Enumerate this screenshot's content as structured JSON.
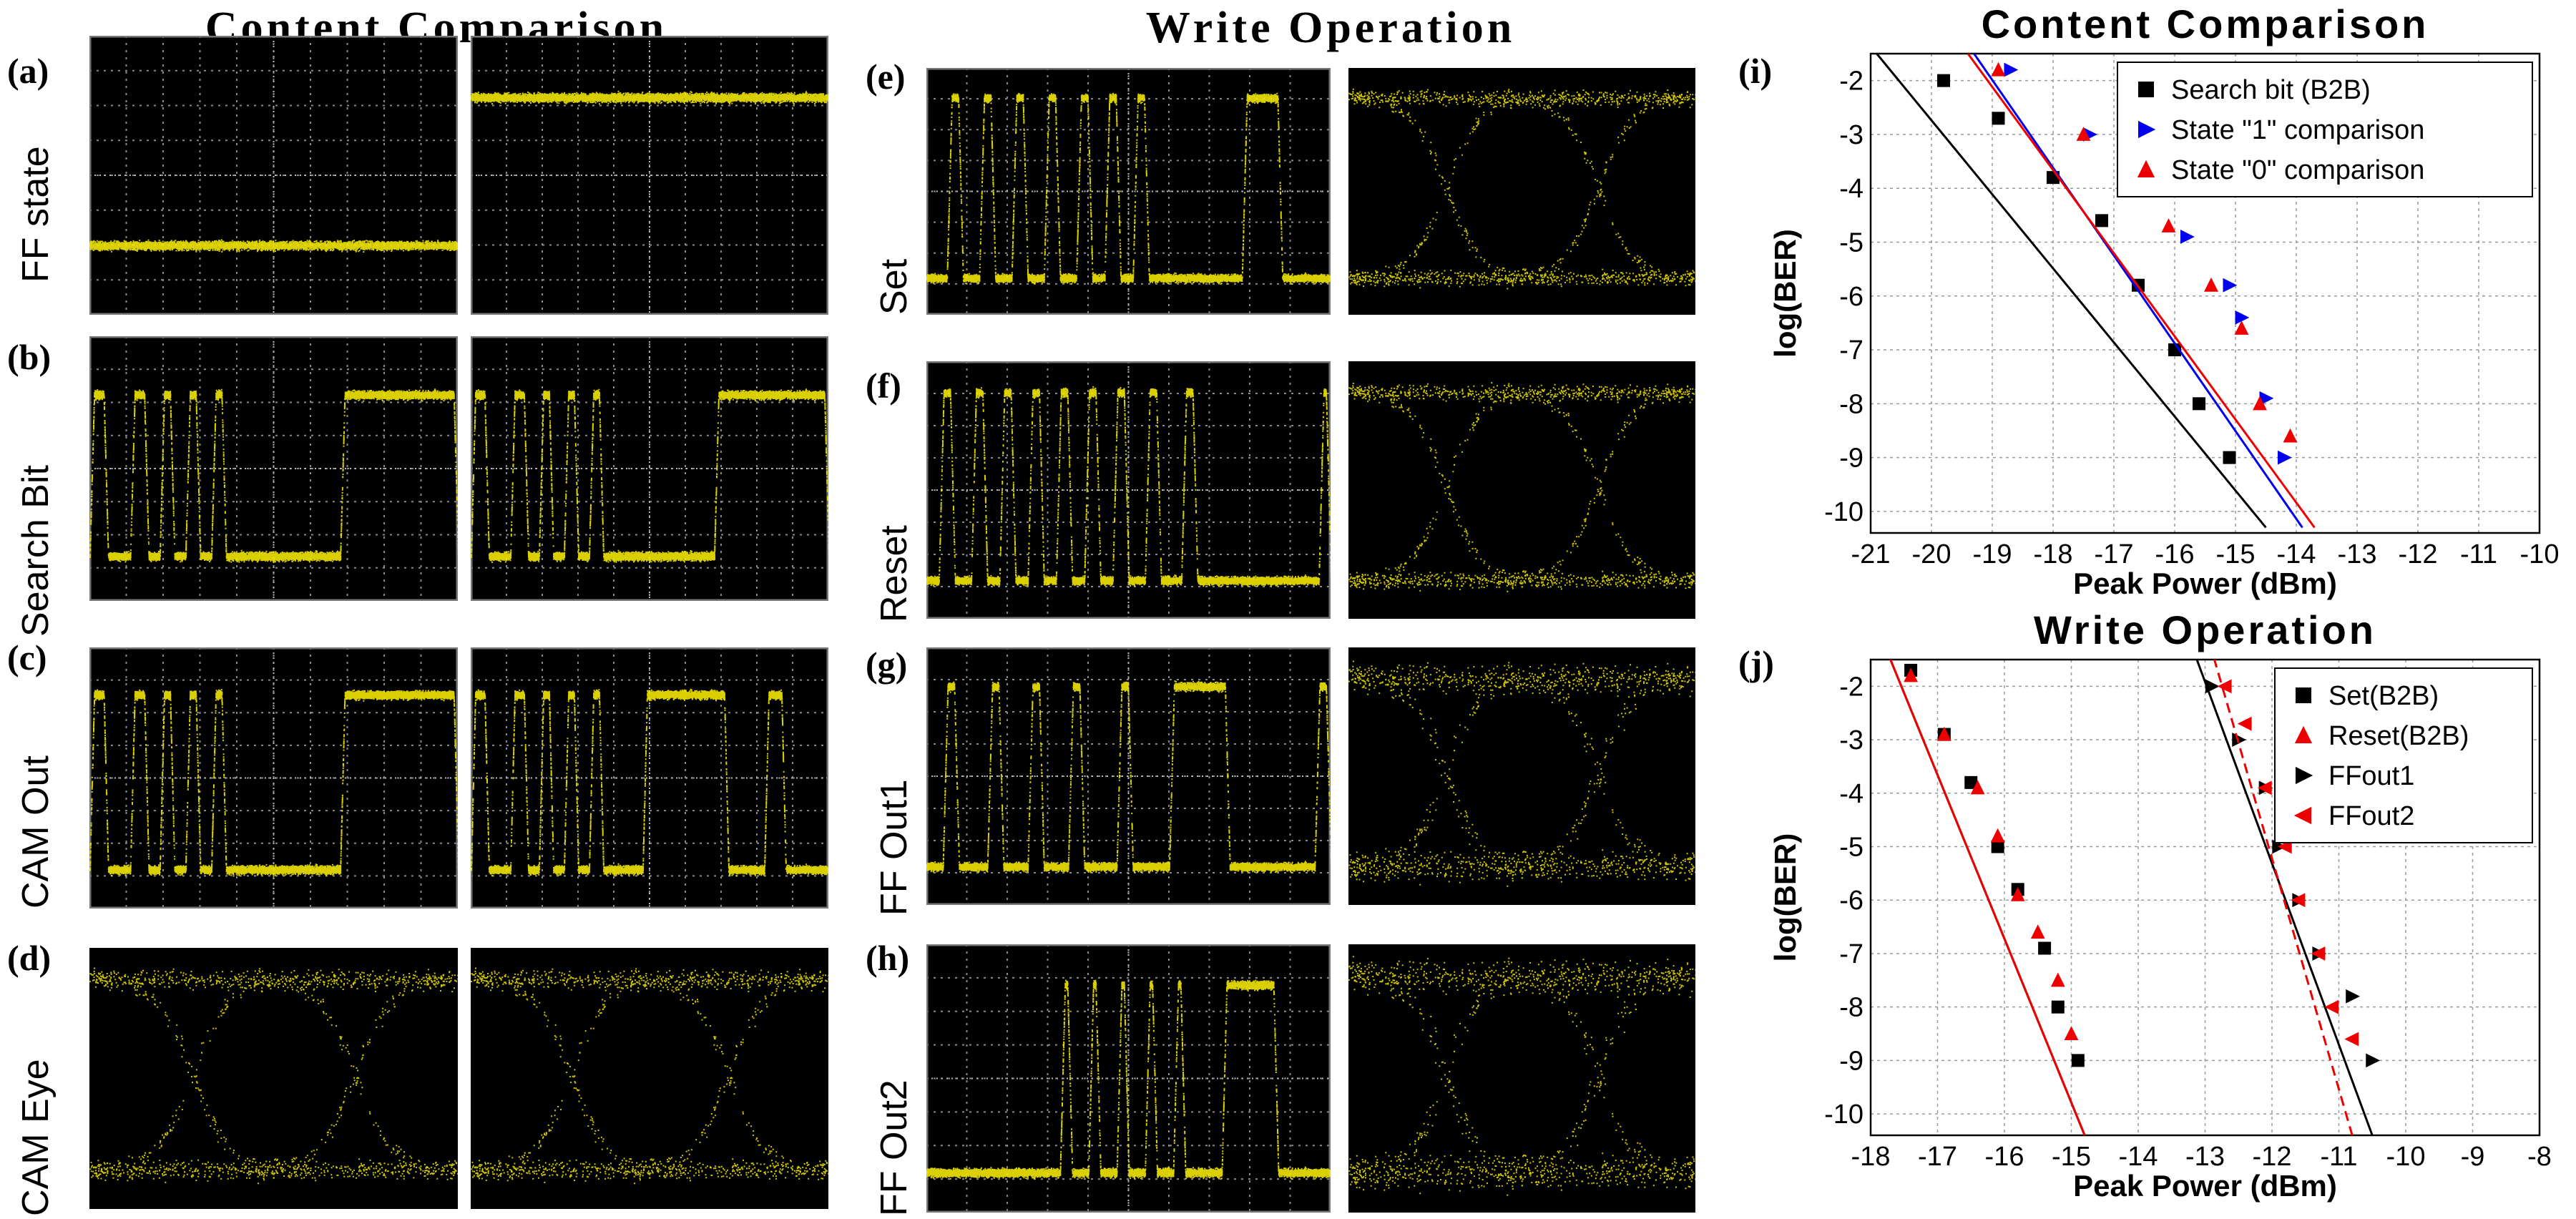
{
  "section_titles": {
    "left": "Content Comparison",
    "middle": "Write Operation",
    "chart_i": "Content Comparison",
    "chart_j": "Write Operation"
  },
  "panel_labels": [
    "(a)",
    "(b)",
    "(c)",
    "(d)",
    "(e)",
    "(f)",
    "(g)",
    "(h)",
    "(i)",
    "(j)"
  ],
  "row_labels_left": [
    "FF state",
    "Search Bit",
    "CAM Out",
    "CAM Eye"
  ],
  "row_labels_middle": [
    "Set",
    "Reset",
    "FF Out1",
    "FF Out2"
  ],
  "trace_color": "#f2e600",
  "grid_color": "#8a8a8a",
  "chart_data": [
    {
      "panel": "(i)",
      "type": "scatter",
      "title": "Content Comparison",
      "xlabel": "Peak Power (dBm)",
      "ylabel": "log(BER)",
      "xlim": [
        -21,
        -10
      ],
      "xticks": [
        -21,
        -20,
        -19,
        -18,
        -17,
        -16,
        -15,
        -14,
        -13,
        -12,
        -11,
        -10
      ],
      "yticks": [
        -2,
        -3,
        -4,
        -5,
        -6,
        -7,
        -8,
        -9,
        -10
      ],
      "grid": true,
      "legend_position": "top-right",
      "series": [
        {
          "name": "Search bit (B2B)",
          "marker": "square",
          "color": "#000000",
          "line": "solid",
          "points": [
            [
              -19.8,
              -2
            ],
            [
              -18.9,
              -2.7
            ],
            [
              -18.0,
              -3.8
            ],
            [
              -17.2,
              -4.6
            ],
            [
              -16.6,
              -5.8
            ],
            [
              -16.0,
              -7
            ],
            [
              -15.6,
              -8
            ],
            [
              -15.1,
              -9
            ]
          ],
          "fit": [
            [
              -20.9,
              -1.5
            ],
            [
              -14.5,
              -10.3
            ]
          ]
        },
        {
          "name": "State \"1\" comparison",
          "marker": "triangle-right",
          "color": "#0000ee",
          "line": "solid",
          "points": [
            [
              -18.7,
              -1.8
            ],
            [
              -17.4,
              -3
            ],
            [
              -16.5,
              -3.8
            ],
            [
              -15.8,
              -4.9
            ],
            [
              -15.1,
              -5.8
            ],
            [
              -14.9,
              -6.4
            ],
            [
              -14.5,
              -7.9
            ],
            [
              -14.2,
              -9
            ]
          ],
          "fit": [
            [
              -19.3,
              -1.5
            ],
            [
              -13.9,
              -10.3
            ]
          ]
        },
        {
          "name": "State \"0\" comparison",
          "marker": "triangle-up",
          "color": "#ee0000",
          "line": "solid",
          "points": [
            [
              -18.9,
              -1.8
            ],
            [
              -17.5,
              -3
            ],
            [
              -16.8,
              -3.8
            ],
            [
              -16.1,
              -4.7
            ],
            [
              -15.4,
              -5.8
            ],
            [
              -14.9,
              -6.6
            ],
            [
              -14.6,
              -8
            ],
            [
              -14.1,
              -8.6
            ]
          ],
          "fit": [
            [
              -19.4,
              -1.5
            ],
            [
              -13.7,
              -10.3
            ]
          ]
        }
      ]
    },
    {
      "panel": "(j)",
      "type": "scatter",
      "title": "Write Operation",
      "xlabel": "Peak Power (dBm)",
      "ylabel": "log(BER)",
      "xlim": [
        -18,
        -8
      ],
      "xticks": [
        -18,
        -17,
        -16,
        -15,
        -14,
        -13,
        -12,
        -11,
        -10,
        -9,
        -8
      ],
      "yticks": [
        -2,
        -3,
        -4,
        -5,
        -6,
        -7,
        -8,
        -9,
        -10
      ],
      "grid": true,
      "legend_position": "top-right",
      "series": [
        {
          "name": "Set(B2B)",
          "marker": "square",
          "color": "#000000",
          "line": "solid",
          "points": [
            [
              -17.4,
              -1.7
            ],
            [
              -16.9,
              -2.9
            ],
            [
              -16.5,
              -3.8
            ],
            [
              -16.1,
              -5
            ],
            [
              -15.8,
              -5.8
            ],
            [
              -15.4,
              -6.9
            ],
            [
              -15.2,
              -8
            ],
            [
              -14.9,
              -9
            ]
          ],
          "fit": [
            [
              -17.9,
              -0.9
            ],
            [
              -14.8,
              -10.4
            ]
          ]
        },
        {
          "name": "Reset(B2B)",
          "marker": "triangle-up",
          "color": "#ee0000",
          "line": "solid",
          "points": [
            [
              -17.4,
              -1.8
            ],
            [
              -16.9,
              -2.9
            ],
            [
              -16.4,
              -3.9
            ],
            [
              -16.1,
              -4.8
            ],
            [
              -15.8,
              -5.9
            ],
            [
              -15.5,
              -6.6
            ],
            [
              -15.2,
              -7.5
            ],
            [
              -15.0,
              -8.5
            ]
          ],
          "fit": [
            [
              -17.9,
              -0.9
            ],
            [
              -14.8,
              -10.4
            ]
          ]
        },
        {
          "name": "FFout1",
          "marker": "triangle-right",
          "color": "#000000",
          "line": "solid",
          "points": [
            [
              -12.9,
              -2
            ],
            [
              -12.5,
              -3
            ],
            [
              -12.1,
              -3.9
            ],
            [
              -11.9,
              -5
            ],
            [
              -11.6,
              -6
            ],
            [
              -11.3,
              -7
            ],
            [
              -10.8,
              -7.8
            ],
            [
              -10.5,
              -9
            ]
          ],
          "fit": [
            [
              -13.3,
              -0.9
            ],
            [
              -10.5,
              -10.4
            ]
          ]
        },
        {
          "name": "FFout2",
          "marker": "triangle-left",
          "color": "#ee0000",
          "line": "dashed",
          "points": [
            [
              -12.7,
              -2
            ],
            [
              -12.4,
              -2.7
            ],
            [
              -12.1,
              -3.9
            ],
            [
              -11.8,
              -5
            ],
            [
              -11.6,
              -6
            ],
            [
              -11.3,
              -7
            ],
            [
              -11.1,
              -8
            ],
            [
              -10.8,
              -8.6
            ]
          ],
          "fit": [
            [
              -13.0,
              -0.9
            ],
            [
              -10.8,
              -10.4
            ]
          ]
        }
      ]
    }
  ]
}
